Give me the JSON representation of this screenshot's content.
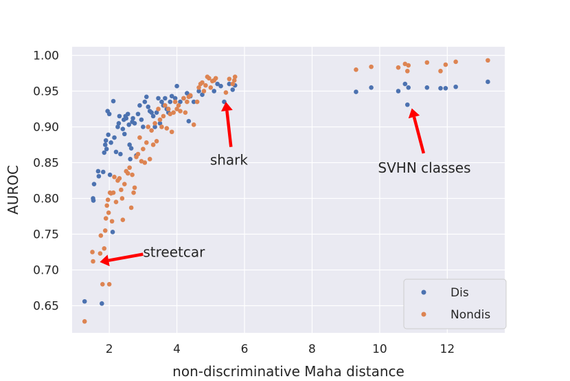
{
  "chart_data": {
    "type": "scatter",
    "title": "",
    "xlabel": "non-discriminative Maha distance",
    "ylabel": "AUROC",
    "xlim": [
      0.9,
      13.7
    ],
    "ylim": [
      0.612,
      1.012
    ],
    "xticks": [
      2,
      4,
      6,
      8,
      10,
      12
    ],
    "yticks": [
      0.65,
      0.7,
      0.75,
      0.8,
      0.85,
      0.9,
      0.95,
      1.0
    ],
    "xtick_labels": [
      "2",
      "4",
      "6",
      "8",
      "10",
      "12"
    ],
    "ytick_labels": [
      "0.65",
      "0.70",
      "0.75",
      "0.80",
      "0.85",
      "0.90",
      "0.95",
      "1.00"
    ],
    "grid": true,
    "legend_position": "bottom-right",
    "colors": {
      "Dis": "#4c72b0",
      "Nondis": "#dd8452",
      "arrow": "#ff0000",
      "background": "#eaeaf2",
      "grid": "#ffffff"
    },
    "series": [
      {
        "name": "Dis",
        "points": [
          [
            1.27,
            0.656
          ],
          [
            1.52,
            0.8
          ],
          [
            1.53,
            0.797
          ],
          [
            1.55,
            0.82
          ],
          [
            1.67,
            0.838
          ],
          [
            1.69,
            0.831
          ],
          [
            1.78,
            0.653
          ],
          [
            1.82,
            0.837
          ],
          [
            1.85,
            0.864
          ],
          [
            1.88,
            0.875
          ],
          [
            1.9,
            0.881
          ],
          [
            1.92,
            0.869
          ],
          [
            1.95,
            0.922
          ],
          [
            1.97,
            0.889
          ],
          [
            2.0,
            0.918
          ],
          [
            2.02,
            0.833
          ],
          [
            2.05,
            0.878
          ],
          [
            2.1,
            0.753
          ],
          [
            2.12,
            0.936
          ],
          [
            2.15,
            0.885
          ],
          [
            2.2,
            0.865
          ],
          [
            2.25,
            0.9
          ],
          [
            2.28,
            0.905
          ],
          [
            2.3,
            0.915
          ],
          [
            2.33,
            0.862
          ],
          [
            2.4,
            0.897
          ],
          [
            2.43,
            0.91
          ],
          [
            2.45,
            0.89
          ],
          [
            2.48,
            0.915
          ],
          [
            2.5,
            0.912
          ],
          [
            2.55,
            0.918
          ],
          [
            2.58,
            0.903
          ],
          [
            2.6,
            0.875
          ],
          [
            2.62,
            0.855
          ],
          [
            2.65,
            0.87
          ],
          [
            2.68,
            0.907
          ],
          [
            2.7,
            0.912
          ],
          [
            2.75,
            0.905
          ],
          [
            2.8,
            0.86
          ],
          [
            2.85,
            0.918
          ],
          [
            2.9,
            0.93
          ],
          [
            2.95,
            0.91
          ],
          [
            3.0,
            0.9
          ],
          [
            3.05,
            0.935
          ],
          [
            3.1,
            0.942
          ],
          [
            3.15,
            0.928
          ],
          [
            3.2,
            0.922
          ],
          [
            3.25,
            0.92
          ],
          [
            3.3,
            0.915
          ],
          [
            3.35,
            0.9
          ],
          [
            3.4,
            0.92
          ],
          [
            3.45,
            0.94
          ],
          [
            3.5,
            0.905
          ],
          [
            3.55,
            0.935
          ],
          [
            3.6,
            0.93
          ],
          [
            3.65,
            0.94
          ],
          [
            3.7,
            0.925
          ],
          [
            3.75,
            0.92
          ],
          [
            3.8,
            0.935
          ],
          [
            3.85,
            0.943
          ],
          [
            3.95,
            0.94
          ],
          [
            4.0,
            0.957
          ],
          [
            4.1,
            0.935
          ],
          [
            4.2,
            0.94
          ],
          [
            4.3,
            0.947
          ],
          [
            4.35,
            0.908
          ],
          [
            4.4,
            0.943
          ],
          [
            4.5,
            0.935
          ],
          [
            4.65,
            0.95
          ],
          [
            4.75,
            0.945
          ],
          [
            5.1,
            0.95
          ],
          [
            5.2,
            0.96
          ],
          [
            5.3,
            0.957
          ],
          [
            5.4,
            0.935
          ],
          [
            5.55,
            0.96
          ],
          [
            5.65,
            0.952
          ],
          [
            5.72,
            0.958
          ],
          [
            9.3,
            0.949
          ],
          [
            9.75,
            0.955
          ],
          [
            10.55,
            0.95
          ],
          [
            10.75,
            0.96
          ],
          [
            10.82,
            0.931
          ],
          [
            10.85,
            0.955
          ],
          [
            11.4,
            0.955
          ],
          [
            11.8,
            0.954
          ],
          [
            11.95,
            0.954
          ],
          [
            12.25,
            0.956
          ],
          [
            13.2,
            0.963
          ]
        ]
      },
      {
        "name": "Nondis",
        "points": [
          [
            1.27,
            0.628
          ],
          [
            1.5,
            0.725
          ],
          [
            1.52,
            0.712
          ],
          [
            1.73,
            0.723
          ],
          [
            1.75,
            0.748
          ],
          [
            1.8,
            0.68
          ],
          [
            1.85,
            0.73
          ],
          [
            1.88,
            0.755
          ],
          [
            1.9,
            0.772
          ],
          [
            1.93,
            0.79
          ],
          [
            1.96,
            0.798
          ],
          [
            1.98,
            0.78
          ],
          [
            2.0,
            0.68
          ],
          [
            2.02,
            0.808
          ],
          [
            2.05,
            0.807
          ],
          [
            2.08,
            0.768
          ],
          [
            2.12,
            0.808
          ],
          [
            2.15,
            0.83
          ],
          [
            2.2,
            0.795
          ],
          [
            2.25,
            0.825
          ],
          [
            2.3,
            0.828
          ],
          [
            2.35,
            0.812
          ],
          [
            2.38,
            0.8
          ],
          [
            2.4,
            0.77
          ],
          [
            2.45,
            0.82
          ],
          [
            2.5,
            0.838
          ],
          [
            2.55,
            0.835
          ],
          [
            2.6,
            0.843
          ],
          [
            2.65,
            0.787
          ],
          [
            2.68,
            0.833
          ],
          [
            2.72,
            0.808
          ],
          [
            2.75,
            0.815
          ],
          [
            2.8,
            0.858
          ],
          [
            2.85,
            0.862
          ],
          [
            2.9,
            0.885
          ],
          [
            2.95,
            0.852
          ],
          [
            3.0,
            0.869
          ],
          [
            3.05,
            0.85
          ],
          [
            3.1,
            0.878
          ],
          [
            3.15,
            0.9
          ],
          [
            3.2,
            0.855
          ],
          [
            3.25,
            0.895
          ],
          [
            3.3,
            0.875
          ],
          [
            3.35,
            0.905
          ],
          [
            3.4,
            0.88
          ],
          [
            3.45,
            0.925
          ],
          [
            3.5,
            0.91
          ],
          [
            3.55,
            0.9
          ],
          [
            3.6,
            0.915
          ],
          [
            3.65,
            0.93
          ],
          [
            3.7,
            0.898
          ],
          [
            3.75,
            0.925
          ],
          [
            3.8,
            0.918
          ],
          [
            3.85,
            0.893
          ],
          [
            3.9,
            0.92
          ],
          [
            3.95,
            0.935
          ],
          [
            4.0,
            0.925
          ],
          [
            4.05,
            0.93
          ],
          [
            4.1,
            0.922
          ],
          [
            4.2,
            0.94
          ],
          [
            4.25,
            0.92
          ],
          [
            4.3,
            0.935
          ],
          [
            4.35,
            0.942
          ],
          [
            4.4,
            0.944
          ],
          [
            4.5,
            0.903
          ],
          [
            4.6,
            0.935
          ],
          [
            4.65,
            0.955
          ],
          [
            4.7,
            0.96
          ],
          [
            4.75,
            0.962
          ],
          [
            4.8,
            0.95
          ],
          [
            4.85,
            0.958
          ],
          [
            4.9,
            0.97
          ],
          [
            4.95,
            0.968
          ],
          [
            5.0,
            0.955
          ],
          [
            5.05,
            0.964
          ],
          [
            5.1,
            0.965
          ],
          [
            5.15,
            0.968
          ],
          [
            5.45,
            0.948
          ],
          [
            5.55,
            0.967
          ],
          [
            5.65,
            0.96
          ],
          [
            5.7,
            0.965
          ],
          [
            5.72,
            0.97
          ],
          [
            9.3,
            0.98
          ],
          [
            9.75,
            0.984
          ],
          [
            10.55,
            0.983
          ],
          [
            10.75,
            0.988
          ],
          [
            10.82,
            0.978
          ],
          [
            10.85,
            0.986
          ],
          [
            11.4,
            0.99
          ],
          [
            11.8,
            0.978
          ],
          [
            11.95,
            0.987
          ],
          [
            12.25,
            0.991
          ],
          [
            13.2,
            0.993
          ]
        ]
      }
    ],
    "annotations": [
      {
        "text": "streetcar",
        "target": [
          1.72,
          0.711
        ],
        "text_at": [
          3.0,
          0.722
        ],
        "label_at": [
          3.0,
          0.725
        ]
      },
      {
        "text": "shark",
        "target": [
          5.45,
          0.935
        ],
        "text_at": [
          5.6,
          0.872
        ],
        "label_at": [
          4.98,
          0.854
        ]
      },
      {
        "text": "SVHN classes",
        "target": [
          10.95,
          0.926
        ],
        "text_at": [
          11.3,
          0.863
        ],
        "label_at": [
          9.95,
          0.843
        ]
      }
    ],
    "legend": [
      {
        "name": "Dis"
      },
      {
        "name": "Nondis"
      }
    ]
  }
}
